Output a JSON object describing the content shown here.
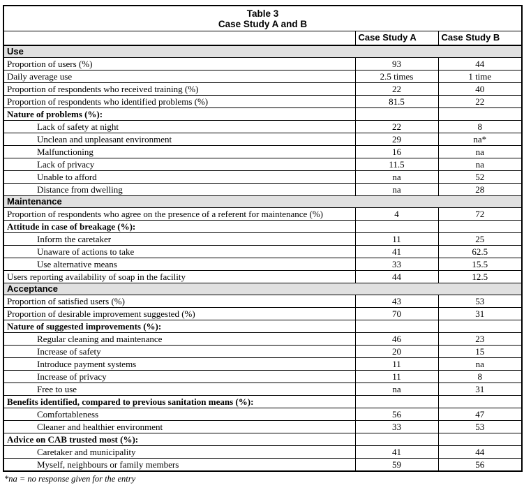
{
  "table": {
    "title_line1": "Table 3",
    "title_line2": "Case Study A and B",
    "columns": [
      "Case Study A",
      "Case Study B"
    ],
    "rows": [
      {
        "type": "section",
        "label": "Use"
      },
      {
        "type": "data",
        "indent": false,
        "label": "Proportion of users (%)",
        "a": "93",
        "b": "44"
      },
      {
        "type": "data",
        "indent": false,
        "label": "Daily average use",
        "a": "2.5 times",
        "b": "1 time"
      },
      {
        "type": "data",
        "indent": false,
        "label": "Proportion of respondents who received training (%)",
        "a": "22",
        "b": "40"
      },
      {
        "type": "data",
        "indent": false,
        "label": "Proportion of respondents who identified problems (%)",
        "a": "81.5",
        "b": "22"
      },
      {
        "type": "subheader",
        "label": "Nature of problems (%):"
      },
      {
        "type": "data",
        "indent": true,
        "label": "Lack of safety at night",
        "a": "22",
        "b": "8"
      },
      {
        "type": "data",
        "indent": true,
        "label": "Unclean and unpleasant environment",
        "a": "29",
        "b": "na*"
      },
      {
        "type": "data",
        "indent": true,
        "label": "Malfunctioning",
        "a": "16",
        "b": "na"
      },
      {
        "type": "data",
        "indent": true,
        "label": "Lack of privacy",
        "a": "11.5",
        "b": "na"
      },
      {
        "type": "data",
        "indent": true,
        "label": "Unable to afford",
        "a": "na",
        "b": "52"
      },
      {
        "type": "data",
        "indent": true,
        "label": "Distance from dwelling",
        "a": "na",
        "b": "28"
      },
      {
        "type": "section",
        "label": "Maintenance"
      },
      {
        "type": "data",
        "indent": false,
        "label": "Proportion of respondents who agree on the presence of a referent for maintenance (%)",
        "a": "4",
        "b": "72"
      },
      {
        "type": "subheader",
        "label": "Attitude in case of breakage (%):"
      },
      {
        "type": "data",
        "indent": true,
        "label": "Inform the caretaker",
        "a": "11",
        "b": "25"
      },
      {
        "type": "data",
        "indent": true,
        "label": "Unaware of actions to take",
        "a": "41",
        "b": "62.5"
      },
      {
        "type": "data",
        "indent": true,
        "label": "Use alternative means",
        "a": "33",
        "b": "15.5"
      },
      {
        "type": "data",
        "indent": false,
        "label": "Users reporting availability of soap in the facility",
        "a": "44",
        "b": "12.5"
      },
      {
        "type": "section",
        "label": "Acceptance"
      },
      {
        "type": "data",
        "indent": false,
        "label": "Proportion of satisfied users (%)",
        "a": "43",
        "b": "53"
      },
      {
        "type": "data",
        "indent": false,
        "label": "Proportion of desirable improvement suggested (%)",
        "a": "70",
        "b": "31"
      },
      {
        "type": "subheader",
        "label": "Nature of suggested improvements (%):"
      },
      {
        "type": "data",
        "indent": true,
        "label": "Regular cleaning and maintenance",
        "a": "46",
        "b": "23"
      },
      {
        "type": "data",
        "indent": true,
        "label": "Increase of safety",
        "a": "20",
        "b": "15"
      },
      {
        "type": "data",
        "indent": true,
        "label": "Introduce payment systems",
        "a": "11",
        "b": "na"
      },
      {
        "type": "data",
        "indent": true,
        "label": "Increase of privacy",
        "a": "11",
        "b": "8"
      },
      {
        "type": "data",
        "indent": true,
        "label": "Free to use",
        "a": "na",
        "b": "31"
      },
      {
        "type": "subheader",
        "label": "Benefits identified, compared to previous sanitation means (%):"
      },
      {
        "type": "data",
        "indent": true,
        "label": "Comfortableness",
        "a": "56",
        "b": "47"
      },
      {
        "type": "data",
        "indent": true,
        "label": "Cleaner and healthier environment",
        "a": "33",
        "b": "53"
      },
      {
        "type": "subheader",
        "label": "Advice on CAB trusted most (%):"
      },
      {
        "type": "data",
        "indent": true,
        "label": "Caretaker and municipality",
        "a": "41",
        "b": "44"
      },
      {
        "type": "data",
        "indent": true,
        "label": "Myself, neighbours or family members",
        "a": "59",
        "b": "56"
      }
    ],
    "footnote": "*na = no response given for the entry"
  },
  "colors": {
    "section_header_background": "#e0e0e0",
    "border": "#000000",
    "text": "#000000",
    "page_background": "#ffffff"
  }
}
